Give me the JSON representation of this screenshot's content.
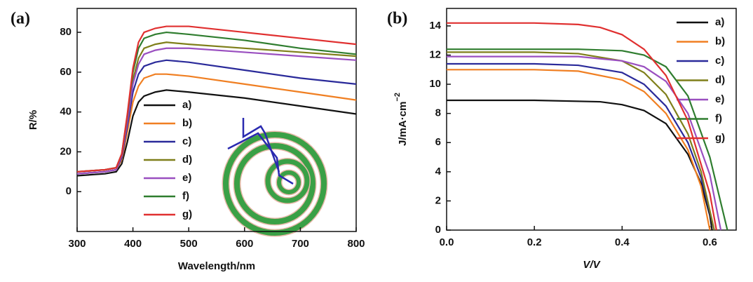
{
  "chart_data": [
    {
      "type": "line",
      "panel_label": "(a)",
      "x_label": "Wavelength/nm",
      "y_label": "R/%",
      "xlim": [
        300,
        800
      ],
      "ylim": [
        -20,
        92
      ],
      "xticks": [
        300,
        400,
        500,
        600,
        700,
        800
      ],
      "yticks": [
        0,
        20,
        40,
        60,
        80
      ],
      "legend": "lower center",
      "x": [
        300,
        350,
        370,
        380,
        390,
        400,
        410,
        420,
        440,
        460,
        500,
        600,
        700,
        800
      ],
      "series": [
        {
          "name": "a)",
          "color": "#111111",
          "values": [
            8,
            9,
            10,
            14,
            25,
            38,
            45,
            48,
            50,
            51,
            50,
            47,
            43,
            39
          ]
        },
        {
          "name": "b)",
          "color": "#f07f22",
          "values": [
            9,
            10,
            11,
            16,
            30,
            45,
            53,
            57,
            59,
            59,
            58,
            54,
            50,
            46
          ]
        },
        {
          "name": "c)",
          "color": "#2a2a9a",
          "values": [
            9,
            10,
            11,
            17,
            33,
            50,
            59,
            63,
            65,
            66,
            65,
            61,
            57,
            54
          ]
        },
        {
          "name": "d)",
          "color": "#7f7f1a",
          "values": [
            10,
            11,
            12,
            18,
            36,
            56,
            67,
            72,
            74,
            75,
            74,
            72,
            70,
            68
          ]
        },
        {
          "name": "e)",
          "color": "#9a4fc0",
          "values": [
            9,
            10,
            11,
            18,
            35,
            54,
            64,
            69,
            71,
            72,
            72,
            70,
            68,
            66
          ]
        },
        {
          "name": "f)",
          "color": "#2f7d2f",
          "values": [
            10,
            11,
            12,
            19,
            38,
            60,
            72,
            77,
            79,
            80,
            79,
            76,
            72,
            69
          ]
        },
        {
          "name": "g)",
          "color": "#e03030",
          "values": [
            10,
            11,
            12,
            19,
            39,
            62,
            75,
            80,
            82,
            83,
            83,
            80,
            77,
            74
          ]
        }
      ]
    },
    {
      "type": "line",
      "panel_label": "(b)",
      "x_label": "V/V",
      "y_label": "J/mA·cm",
      "y_label_sup": "−2",
      "xlim": [
        0,
        0.66
      ],
      "ylim": [
        0,
        15.2
      ],
      "xticks": [
        {
          "value": 0,
          "label": "0.0"
        },
        0.2,
        0.4,
        0.6
      ],
      "yticks": [
        0,
        2,
        4,
        6,
        8,
        10,
        12,
        14
      ],
      "legend": "upper right",
      "series": [
        {
          "name": "a)",
          "color": "#111111",
          "x": [
            0,
            0.2,
            0.35,
            0.4,
            0.45,
            0.5,
            0.55,
            0.58,
            0.6,
            0.605
          ],
          "values": [
            8.9,
            8.9,
            8.8,
            8.6,
            8.2,
            7.3,
            5.2,
            3.2,
            1.0,
            0
          ]
        },
        {
          "name": "b)",
          "color": "#f07f22",
          "x": [
            0,
            0.2,
            0.3,
            0.4,
            0.45,
            0.5,
            0.55,
            0.58,
            0.6
          ],
          "values": [
            11,
            11,
            10.9,
            10.3,
            9.5,
            8.0,
            5.5,
            3.0,
            0
          ]
        },
        {
          "name": "c)",
          "color": "#2a2a9a",
          "x": [
            0,
            0.2,
            0.3,
            0.4,
            0.45,
            0.5,
            0.55,
            0.58,
            0.61
          ],
          "values": [
            11.4,
            11.4,
            11.3,
            10.8,
            10.0,
            8.5,
            6.0,
            3.6,
            0
          ]
        },
        {
          "name": "d)",
          "color": "#7f7f1a",
          "x": [
            0,
            0.2,
            0.3,
            0.4,
            0.45,
            0.5,
            0.55,
            0.58,
            0.61
          ],
          "values": [
            12.2,
            12.2,
            12.1,
            11.6,
            10.8,
            9.3,
            6.6,
            4.0,
            0
          ]
        },
        {
          "name": "e)",
          "color": "#9a4fc0",
          "x": [
            0,
            0.2,
            0.3,
            0.4,
            0.45,
            0.5,
            0.55,
            0.6,
            0.625
          ],
          "values": [
            11.9,
            11.9,
            11.9,
            11.6,
            11.2,
            10.2,
            8.0,
            3.8,
            0
          ]
        },
        {
          "name": "f)",
          "color": "#2f7d2f",
          "x": [
            0,
            0.2,
            0.3,
            0.4,
            0.45,
            0.5,
            0.55,
            0.6,
            0.64
          ],
          "values": [
            12.4,
            12.4,
            12.4,
            12.3,
            12.0,
            11.2,
            9.2,
            5.0,
            0
          ]
        },
        {
          "name": "g)",
          "color": "#e03030",
          "x": [
            0,
            0.2,
            0.3,
            0.35,
            0.4,
            0.45,
            0.5,
            0.55,
            0.6,
            0.615
          ],
          "values": [
            14.2,
            14.2,
            14.1,
            13.9,
            13.4,
            12.4,
            10.6,
            7.5,
            2.5,
            0
          ]
        }
      ]
    }
  ]
}
